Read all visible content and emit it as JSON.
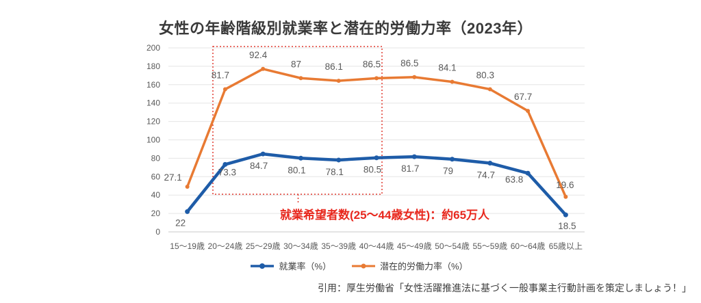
{
  "chart_data": {
    "type": "line",
    "stacked": true,
    "title": "女性の年齢階級別就業率と潜在的労働力率（2023年）",
    "categories": [
      "15〜19歳",
      "20〜24歳",
      "25〜29歳",
      "30〜34歳",
      "35〜39歳",
      "40〜44歳",
      "45〜49歳",
      "50〜54歳",
      "55〜59歳",
      "60〜64歳",
      "65歳以上"
    ],
    "series": [
      {
        "name": "就業率（%）",
        "color": "#1e5ca8",
        "values": [
          22,
          73.3,
          84.7,
          80.1,
          78.1,
          80.5,
          81.7,
          79,
          74.7,
          63.8,
          18.5
        ]
      },
      {
        "name": "潜在的労働力率（%）",
        "color": "#e87a33",
        "values": [
          27.1,
          81.7,
          92.4,
          87,
          86.1,
          86.5,
          86.5,
          84.1,
          80.3,
          67.7,
          19.6
        ]
      }
    ],
    "ylim": [
      0,
      200
    ],
    "ystep": 20,
    "grid": true,
    "legend_position": "bottom",
    "annotation": {
      "text": "就業希望者数(25〜44歳女性)：約65万人",
      "color": "#e8281e",
      "box_color": "#e0392e"
    }
  },
  "citation": "引用：厚生労働省「女性活躍推進法に基づく一般事業主行動計画を策定しましょう！」",
  "colors": {
    "label_gray": "#595959",
    "title_gray": "#3a3a3a",
    "gridline": "#e5e5e5",
    "axis_line": "#c9c9c9",
    "legend_text": "#404040"
  }
}
